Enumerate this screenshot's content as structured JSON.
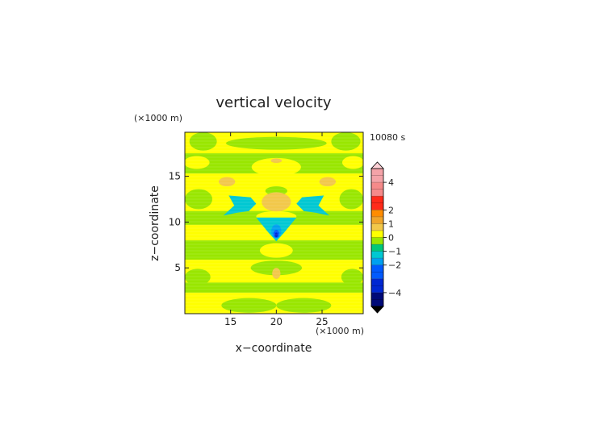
{
  "chart_data": {
    "type": "heatmap",
    "title": "vertical velocity",
    "time_label": "10080 s",
    "xlabel": "x−coordinate",
    "ylabel": "z−coordinate",
    "x_unit_label": "(×1000 m)",
    "y_unit_label": "(×1000 m)",
    "xlim": [
      10,
      29.5
    ],
    "ylim": [
      0,
      19.8
    ],
    "x_ticks": [
      15,
      20,
      25
    ],
    "y_ticks": [
      5,
      10,
      15
    ],
    "colorbar": {
      "range": [
        -5,
        5
      ],
      "ticks": [
        {
          "value": 4,
          "label": "4"
        },
        {
          "value": 2,
          "label": "2"
        },
        {
          "value": 1,
          "label": "1"
        },
        {
          "value": 0,
          "label": "0"
        },
        {
          "value": -1,
          "label": "−1"
        },
        {
          "value": -2,
          "label": "−2"
        },
        {
          "value": -4,
          "label": "−4"
        }
      ],
      "levels": [
        {
          "from": 4,
          "to": 5,
          "color": "#f4a3a8"
        },
        {
          "from": 3,
          "to": 4,
          "color": "#f58a8a"
        },
        {
          "from": 2,
          "to": 3,
          "color": "#ff2a1a"
        },
        {
          "from": 1.5,
          "to": 2,
          "color": "#ff8c00"
        },
        {
          "from": 1,
          "to": 1.5,
          "color": "#f0a52a"
        },
        {
          "from": 0.5,
          "to": 1,
          "color": "#f2c84a"
        },
        {
          "from": 0,
          "to": 0.5,
          "color": "#ffff00"
        },
        {
          "from": -0.5,
          "to": 0,
          "color": "#99e600"
        },
        {
          "from": -1,
          "to": -0.5,
          "color": "#00c87a"
        },
        {
          "from": -1.5,
          "to": -1,
          "color": "#00c8d2"
        },
        {
          "from": -2,
          "to": -1.5,
          "color": "#00a0f0"
        },
        {
          "from": -3,
          "to": -2,
          "color": "#005aff"
        },
        {
          "from": -4,
          "to": -3,
          "color": "#0028d2"
        },
        {
          "from": -5,
          "to": -4,
          "color": "#000a78"
        }
      ],
      "over_color": "#ffd2d7",
      "under_color": "#000000"
    },
    "background_color": "#ffff00",
    "regions": [
      {
        "shape": "band",
        "x": [
          10,
          29.5
        ],
        "y": [
          15.3,
          17.5
        ],
        "value": -0.25
      },
      {
        "shape": "band",
        "x": [
          10,
          29.5
        ],
        "y": [
          9.7,
          11.2
        ],
        "value": -0.25
      },
      {
        "shape": "band",
        "x": [
          10,
          29.5
        ],
        "y": [
          5.9,
          8.0
        ],
        "value": -0.25
      },
      {
        "shape": "band",
        "x": [
          10,
          29.5
        ],
        "y": [
          2.3,
          3.4
        ],
        "value": -0.25
      },
      {
        "shape": "ellipse",
        "cx": 12.0,
        "cy": 18.8,
        "rx": 1.5,
        "ry": 1.0,
        "value": -0.25
      },
      {
        "shape": "ellipse",
        "cx": 27.6,
        "cy": 18.8,
        "rx": 1.6,
        "ry": 1.0,
        "value": -0.25
      },
      {
        "shape": "ellipse",
        "cx": 20.0,
        "cy": 18.6,
        "rx": 5.5,
        "ry": 0.7,
        "value": -0.25
      },
      {
        "shape": "ellipse",
        "cx": 11.5,
        "cy": 12.5,
        "rx": 1.5,
        "ry": 1.1,
        "value": -0.25
      },
      {
        "shape": "ellipse",
        "cx": 28.2,
        "cy": 12.5,
        "rx": 1.3,
        "ry": 1.1,
        "value": -0.25
      },
      {
        "shape": "ellipse",
        "cx": 20.0,
        "cy": 13.4,
        "rx": 1.2,
        "ry": 0.5,
        "value": -0.25
      },
      {
        "shape": "ellipse",
        "cx": 11.4,
        "cy": 4.0,
        "rx": 1.4,
        "ry": 0.9,
        "value": -0.25
      },
      {
        "shape": "ellipse",
        "cx": 28.3,
        "cy": 4.0,
        "rx": 1.2,
        "ry": 0.9,
        "value": -0.25
      },
      {
        "shape": "ellipse",
        "cx": 20.0,
        "cy": 5.0,
        "rx": 2.8,
        "ry": 0.8,
        "value": -0.25
      },
      {
        "shape": "ellipse",
        "cx": 17.0,
        "cy": 0.9,
        "rx": 3.0,
        "ry": 0.8,
        "value": -0.25
      },
      {
        "shape": "ellipse",
        "cx": 23.0,
        "cy": 0.9,
        "rx": 3.0,
        "ry": 0.8,
        "value": -0.25
      },
      {
        "shape": "ellipse",
        "cx": 20.0,
        "cy": 16.0,
        "rx": 2.7,
        "ry": 1.0,
        "value": 0.25
      },
      {
        "shape": "ellipse",
        "cx": 11.3,
        "cy": 16.5,
        "rx": 1.4,
        "ry": 0.7,
        "value": 0.25
      },
      {
        "shape": "ellipse",
        "cx": 28.4,
        "cy": 16.5,
        "rx": 1.2,
        "ry": 0.7,
        "value": 0.25
      },
      {
        "shape": "ellipse",
        "cx": 20.0,
        "cy": 10.6,
        "rx": 2.2,
        "ry": 0.6,
        "value": 0.25
      },
      {
        "shape": "ellipse",
        "cx": 20.0,
        "cy": 6.9,
        "rx": 1.8,
        "ry": 0.8,
        "value": 0.25
      },
      {
        "shape": "ellipse",
        "cx": 20.0,
        "cy": 12.2,
        "rx": 1.6,
        "ry": 1.05,
        "value": 0.75
      },
      {
        "shape": "ellipse",
        "cx": 20.0,
        "cy": 16.7,
        "rx": 0.6,
        "ry": 0.25,
        "value": 0.75
      },
      {
        "shape": "ellipse",
        "cx": 14.6,
        "cy": 14.4,
        "rx": 0.9,
        "ry": 0.5,
        "value": 0.75
      },
      {
        "shape": "ellipse",
        "cx": 25.6,
        "cy": 14.4,
        "rx": 0.9,
        "ry": 0.5,
        "value": 0.75
      },
      {
        "shape": "ellipse",
        "cx": 20.0,
        "cy": 4.4,
        "rx": 0.45,
        "ry": 0.6,
        "value": 0.75
      },
      {
        "shape": "polygon",
        "points": [
          [
            14.8,
            12.9
          ],
          [
            17.2,
            12.7
          ],
          [
            17.8,
            12.0
          ],
          [
            17.0,
            11.2
          ],
          [
            15.6,
            11.0
          ],
          [
            14.2,
            10.7
          ],
          [
            15.4,
            11.8
          ]
        ],
        "value": -1.25
      },
      {
        "shape": "polygon",
        "points": [
          [
            25.2,
            12.9
          ],
          [
            22.8,
            12.7
          ],
          [
            22.2,
            12.0
          ],
          [
            23.0,
            11.2
          ],
          [
            24.4,
            11.0
          ],
          [
            25.8,
            10.7
          ],
          [
            24.6,
            11.8
          ]
        ],
        "value": -1.25
      },
      {
        "shape": "polygon",
        "points": [
          [
            17.8,
            10.5
          ],
          [
            22.2,
            10.5
          ],
          [
            20.9,
            8.9
          ],
          [
            20.0,
            7.9
          ],
          [
            19.1,
            8.9
          ]
        ],
        "value": -1.25
      },
      {
        "shape": "ellipse",
        "cx": 20.0,
        "cy": 9.0,
        "rx": 0.55,
        "ry": 0.75,
        "value": -1.75
      },
      {
        "shape": "ellipse",
        "cx": 20.0,
        "cy": 8.7,
        "rx": 0.32,
        "ry": 0.45,
        "value": -2.5
      },
      {
        "shape": "ellipse",
        "cx": 20.0,
        "cy": 8.6,
        "rx": 0.15,
        "ry": 0.25,
        "value": -3.5
      }
    ]
  }
}
